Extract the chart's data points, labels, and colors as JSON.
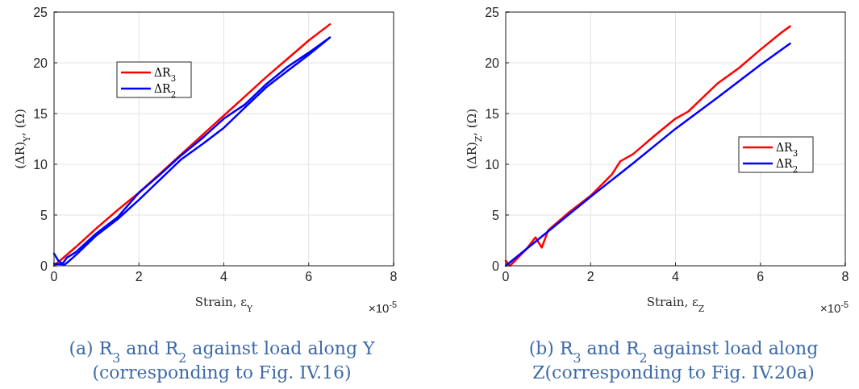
{
  "chart_data": [
    {
      "type": "line",
      "xlabel": "Strain, ε$_{Y}$",
      "ylabel": "(ΔR)$_{Y}$, (Ω)",
      "xlim": [
        0,
        8
      ],
      "xticks": [
        0,
        2,
        4,
        6,
        8
      ],
      "ylim": [
        0,
        25
      ],
      "yticks": [
        0,
        5,
        10,
        15,
        20,
        25
      ],
      "grid": true,
      "legend": "top left",
      "line_style": "solid",
      "annotations": [
        "×10$^{-5}$",
        "(a) R$_{3}$ and R$_{2}$ against load along Y",
        "(corresponding to Fig. IV.16)"
      ],
      "series": [
        {
          "name": "ΔR$_{3}$",
          "color": "#ff0000",
          "x": [
            0,
            0.5,
            1,
            1.5,
            2,
            2.5,
            3,
            3.5,
            4,
            4.5,
            5,
            5.5,
            6,
            6.5
          ],
          "values": [
            0,
            1.8,
            3.7,
            5.5,
            7.2,
            9.1,
            11,
            12.9,
            14.8,
            16.7,
            18.6,
            20.4,
            22.2,
            23.8
          ]
        },
        {
          "name": "ΔR$_{2}$",
          "color": "#0000ff",
          "x": [
            0,
            0.1,
            0.2,
            0.3,
            0.5,
            1,
            1.5,
            2,
            2.5,
            3,
            3.5,
            4,
            4.5,
            5,
            5.5,
            6,
            6.5,
            6,
            5.5,
            5,
            4.5,
            4,
            3.5,
            3,
            2.5,
            2,
            1.5,
            1,
            0.5,
            0.25,
            0
          ],
          "values": [
            1.2,
            0.5,
            0.2,
            0.8,
            1.3,
            3.2,
            4.8,
            7.2,
            9,
            10.9,
            12.6,
            14.5,
            15.9,
            17.9,
            19.6,
            21,
            22.5,
            20.8,
            19.2,
            17.6,
            15.6,
            13.6,
            12,
            10.5,
            8.5,
            6.5,
            4.6,
            3,
            1,
            0.1,
            0.2
          ]
        }
      ]
    },
    {
      "type": "line",
      "xlabel": "Strain, ε$_{Z}$",
      "ylabel": "(ΔR)$_{Z}$, (Ω)",
      "xlim": [
        0,
        8
      ],
      "xticks": [
        0,
        2,
        4,
        6,
        8
      ],
      "ylim": [
        0,
        25
      ],
      "yticks": [
        0,
        5,
        10,
        15,
        20,
        25
      ],
      "grid": true,
      "legend": "right",
      "line_style": "solid",
      "annotations": [
        "×10$^{-5}$",
        "(b) R$_{3}$ and R$_{2}$ against load along",
        "Z(corresponding to Fig. IV.20a)"
      ],
      "series": [
        {
          "name": "ΔR$_{3}$",
          "color": "#ff0000",
          "x": [
            0,
            0.1,
            0.5,
            0.7,
            0.85,
            1,
            1.5,
            2,
            2.5,
            2.7,
            3,
            3.5,
            4,
            4.3,
            4.5,
            5,
            5.5,
            6,
            6.5,
            6.7
          ],
          "values": [
            0.5,
            0,
            1.7,
            2.8,
            1.8,
            3.5,
            5.3,
            6.9,
            9,
            10.3,
            11,
            12.8,
            14.5,
            15.2,
            16,
            18,
            19.5,
            21.3,
            23,
            23.6
          ]
        },
        {
          "name": "ΔR$_{2}$",
          "color": "#0000ff",
          "x": [
            0,
            1,
            2,
            3,
            4,
            5,
            6,
            6.7
          ],
          "values": [
            0,
            3.4,
            6.8,
            10.1,
            13.5,
            16.6,
            19.8,
            21.9
          ]
        }
      ]
    }
  ]
}
